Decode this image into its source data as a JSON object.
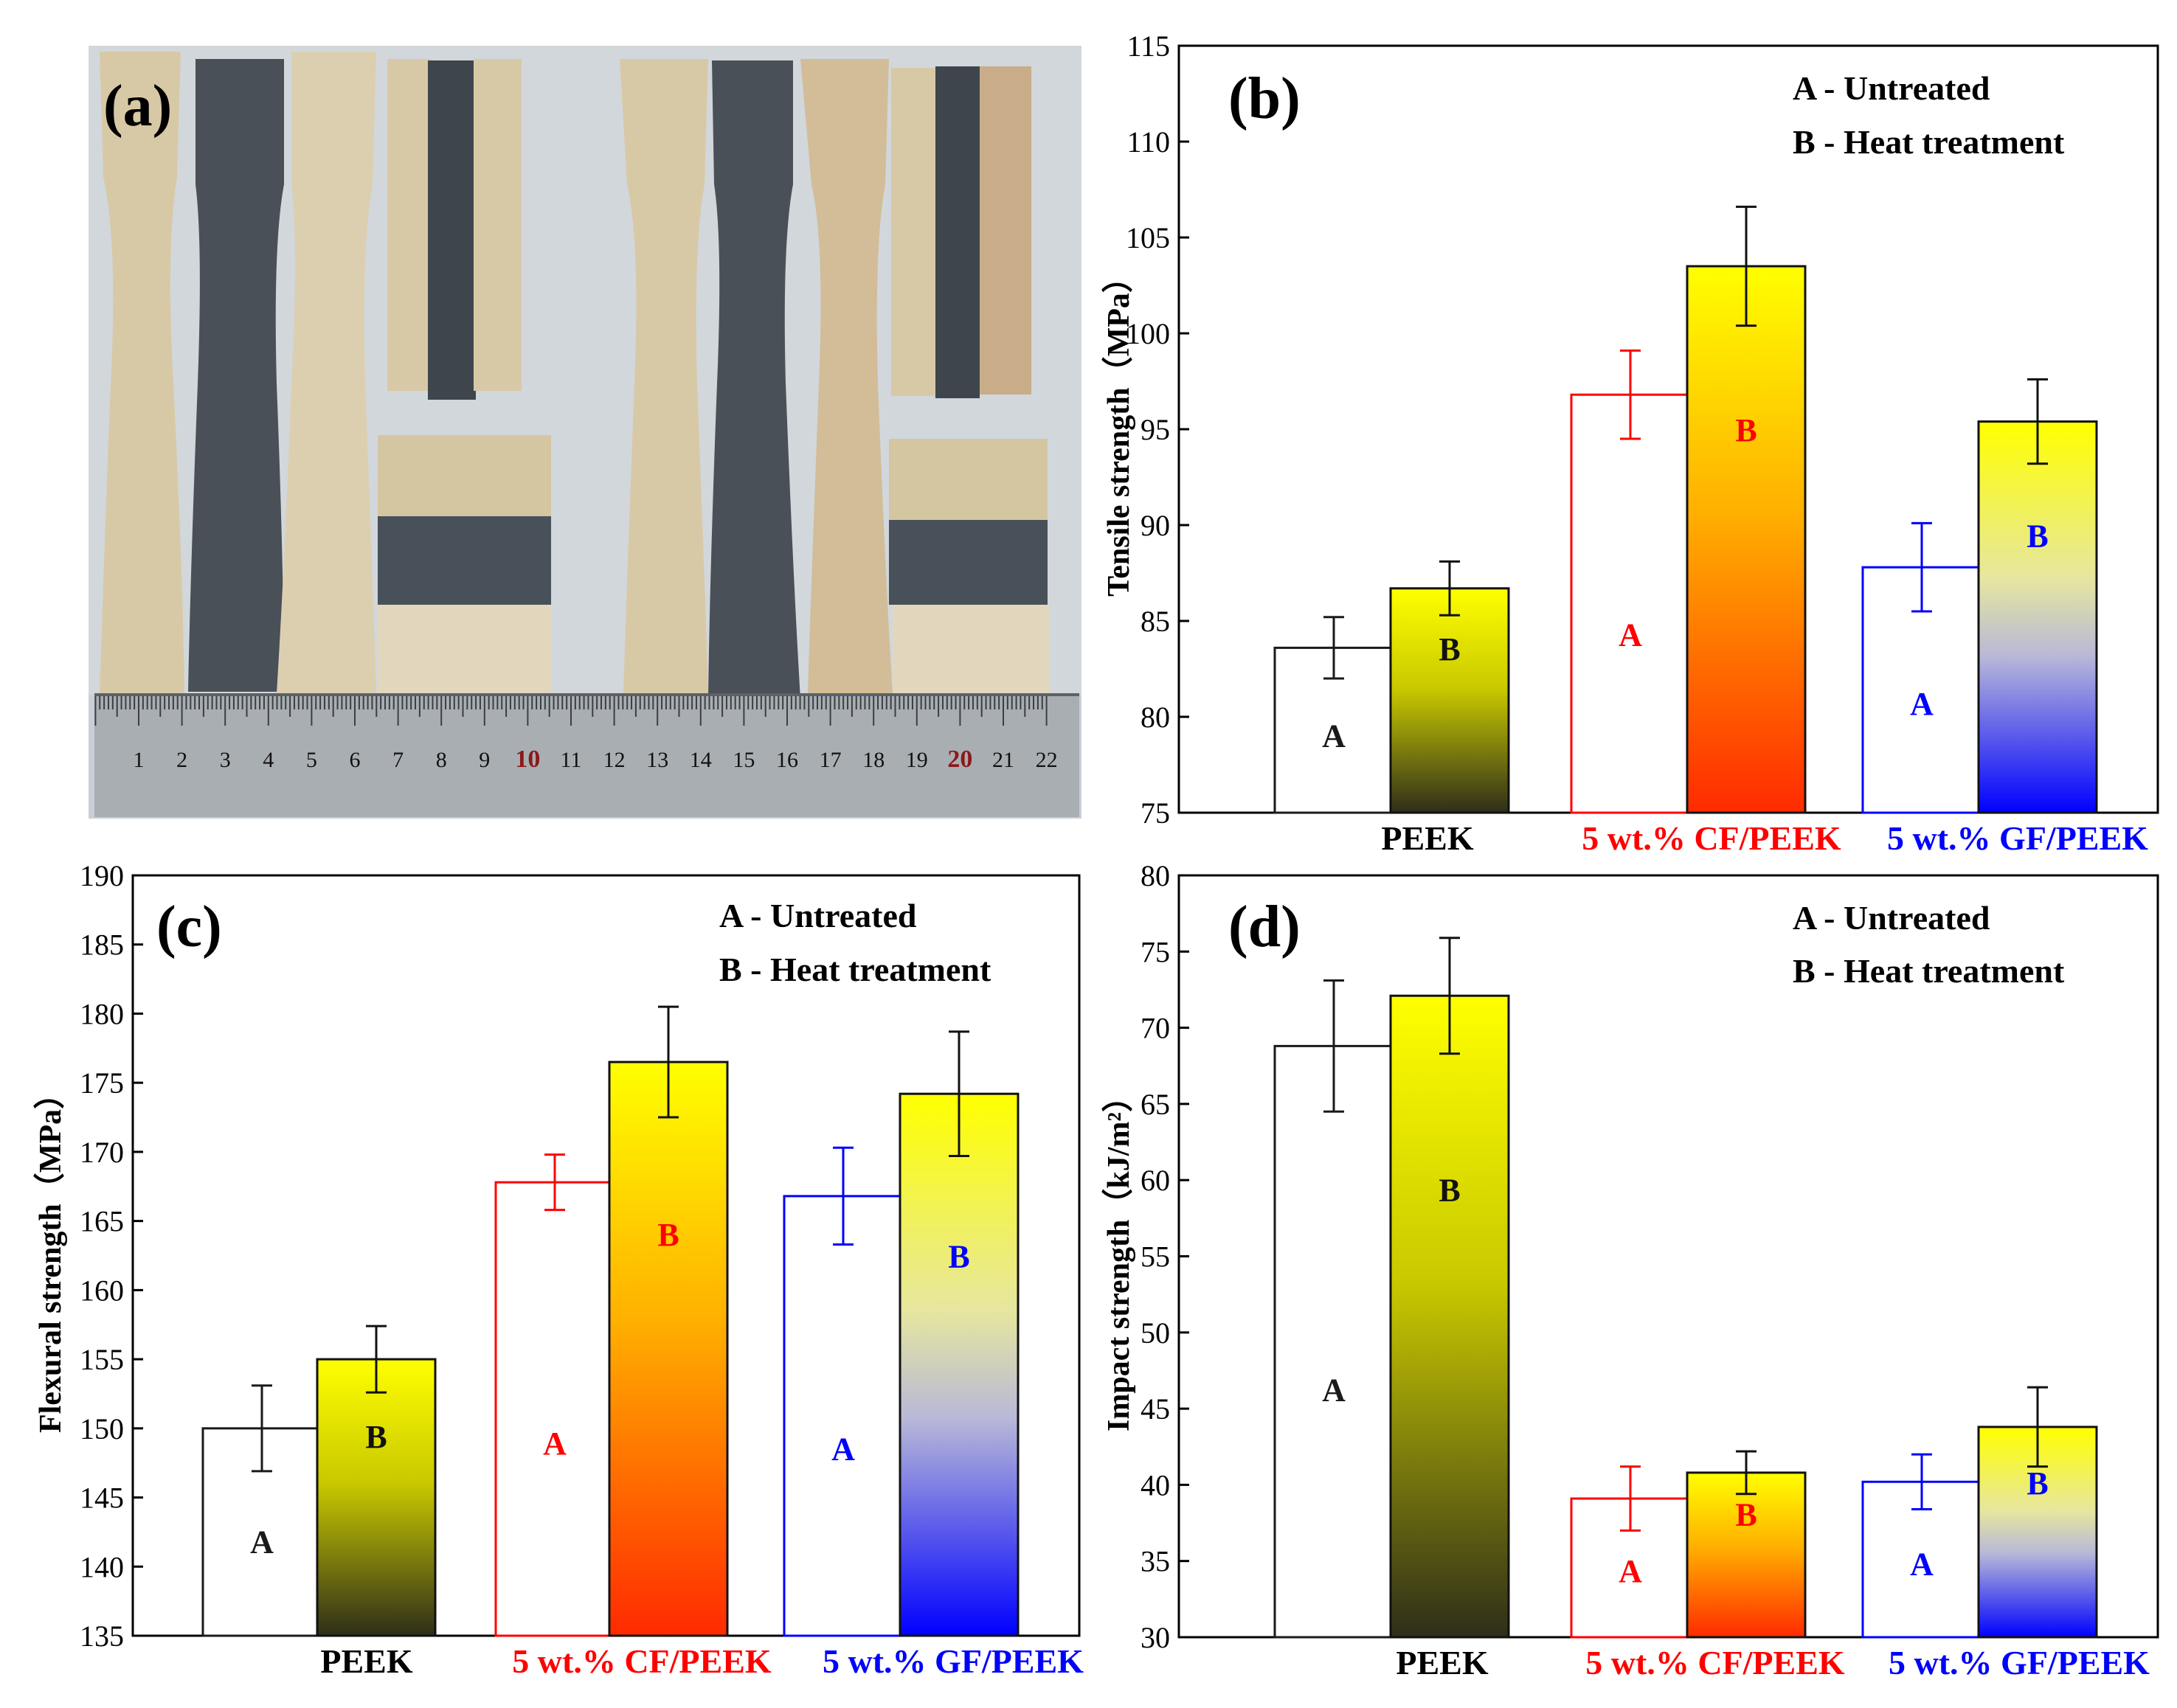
{
  "photo": {
    "panel_label": "(a)",
    "ruler_numbers": [
      "1",
      "2",
      "3",
      "4",
      "5",
      "6",
      "7",
      "8",
      "9",
      "10",
      "11",
      "12",
      "13",
      "14",
      "15",
      "16",
      "17",
      "18",
      "19",
      "20",
      "21",
      "22"
    ]
  },
  "legend": {
    "a": "A - Untreated",
    "b": "B - Heat treatment"
  },
  "bar_letters": {
    "a": "A",
    "b": "B"
  },
  "colors": {
    "peek": "#1a1a1a",
    "cf": "#ff0000",
    "gf": "#0000ff",
    "peek_gradient": [
      "#ffff00",
      "#3a3a20"
    ],
    "cf_gradient": [
      "#ffff00",
      "#ff3300"
    ],
    "gf_gradient": [
      "#ffff00",
      "#0000ff"
    ]
  },
  "chart_data": [
    {
      "panel": "(b)",
      "type": "bar",
      "ylabel": "Tensile strength（MPa）",
      "ylim": [
        75,
        115
      ],
      "yticks": [
        75,
        80,
        85,
        90,
        95,
        100,
        105,
        110,
        115
      ],
      "categories": [
        "PEEK",
        "5 wt.% CF/PEEK",
        "5 wt.% GF/PEEK"
      ],
      "series": [
        {
          "name": "A - Untreated",
          "values": [
            83.6,
            96.8,
            87.8
          ],
          "errors": [
            1.6,
            2.3,
            2.3
          ]
        },
        {
          "name": "B - Heat treatment",
          "values": [
            86.7,
            103.5,
            95.4
          ],
          "errors": [
            1.4,
            3.1,
            2.2
          ]
        }
      ]
    },
    {
      "panel": "(c)",
      "type": "bar",
      "ylabel": "Flexural strength（MPa）",
      "ylim": [
        135,
        190
      ],
      "yticks": [
        135,
        140,
        145,
        150,
        155,
        160,
        165,
        170,
        175,
        180,
        185,
        190
      ],
      "categories": [
        "PEEK",
        "5 wt.% CF/PEEK",
        "5 wt.% GF/PEEK"
      ],
      "series": [
        {
          "name": "A - Untreated",
          "values": [
            150.0,
            167.8,
            166.8
          ],
          "errors": [
            3.1,
            2.0,
            3.5
          ]
        },
        {
          "name": "B - Heat treatment",
          "values": [
            155.0,
            176.5,
            174.2
          ],
          "errors": [
            2.4,
            4.0,
            4.5
          ]
        }
      ]
    },
    {
      "panel": "(d)",
      "type": "bar",
      "ylabel": "Impact strength（kJ/m²）",
      "ylim": [
        30,
        80
      ],
      "yticks": [
        30,
        35,
        40,
        45,
        50,
        55,
        60,
        65,
        70,
        75,
        80
      ],
      "categories": [
        "PEEK",
        "5 wt.% CF/PEEK",
        "5 wt.% GF/PEEK"
      ],
      "series": [
        {
          "name": "A - Untreated",
          "values": [
            68.8,
            39.1,
            40.2
          ],
          "errors": [
            4.3,
            2.1,
            1.8
          ]
        },
        {
          "name": "B - Heat treatment",
          "values": [
            72.1,
            40.8,
            43.8
          ],
          "errors": [
            3.8,
            1.4,
            2.6
          ]
        }
      ]
    }
  ]
}
